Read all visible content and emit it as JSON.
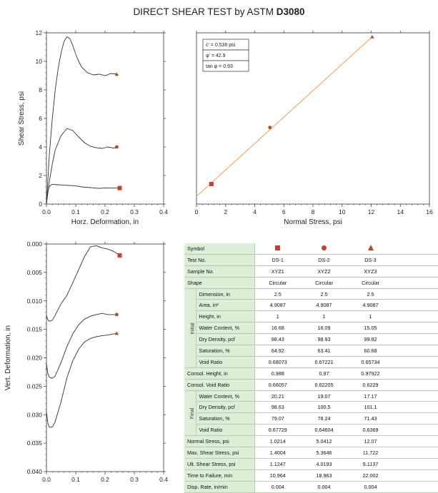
{
  "page": {
    "title_prefix": "DIRECT SHEAR TEST by ASTM",
    "title_bold": "D3080",
    "accent_color": "#c2412a",
    "envelope_color": "#f0b070",
    "table_label_bg": "#dcefd6"
  },
  "chart_data": [
    {
      "id": "shear-vs-horz",
      "type": "line",
      "xlabel": "Horz. Deformation, in",
      "ylabel": "Shear Stress, psi",
      "xlim": [
        0,
        0.4
      ],
      "ylim": [
        0,
        12
      ],
      "xticks": [
        "0.0",
        "0.1",
        "0.2",
        "0.3",
        "0.4"
      ],
      "yticks": [
        "0",
        "2",
        "4",
        "6",
        "8",
        "10",
        "12"
      ],
      "series": [
        {
          "symbol": "square",
          "x": [
            0,
            0.005,
            0.01,
            0.02,
            0.04,
            0.06,
            0.08,
            0.1,
            0.12,
            0.15,
            0.18,
            0.2,
            0.22,
            0.24,
            0.25
          ],
          "y": [
            0,
            0.9,
            1.25,
            1.38,
            1.35,
            1.33,
            1.3,
            1.28,
            1.2,
            1.15,
            1.1,
            1.13,
            1.12,
            1.12,
            1.12
          ]
        },
        {
          "symbol": "circle",
          "x": [
            0,
            0.01,
            0.02,
            0.03,
            0.05,
            0.07,
            0.09,
            0.11,
            0.13,
            0.15,
            0.17,
            0.19,
            0.21,
            0.23,
            0.24
          ],
          "y": [
            0,
            1.6,
            2.8,
            3.8,
            4.8,
            5.3,
            5.15,
            4.7,
            4.3,
            4.05,
            3.95,
            3.9,
            4.0,
            3.92,
            4.0
          ]
        },
        {
          "symbol": "triangle",
          "x": [
            0,
            0.01,
            0.02,
            0.03,
            0.04,
            0.05,
            0.06,
            0.07,
            0.08,
            0.09,
            0.1,
            0.11,
            0.12,
            0.14,
            0.16,
            0.18,
            0.2,
            0.22,
            0.24
          ],
          "y": [
            0,
            3.5,
            6.0,
            8.0,
            9.5,
            10.6,
            11.4,
            11.72,
            11.6,
            11.1,
            10.5,
            10.0,
            9.6,
            9.2,
            9.05,
            9.1,
            9.0,
            9.15,
            9.1
          ]
        }
      ]
    },
    {
      "id": "failure-envelope",
      "type": "scatter",
      "xlabel": "Normal Stress, psi",
      "ylabel": "",
      "xlim": [
        0,
        16
      ],
      "ylim": [
        0,
        12
      ],
      "xticks": [
        "0",
        "2",
        "4",
        "6",
        "8",
        "10",
        "12",
        "14",
        "16"
      ],
      "points": [
        {
          "symbol": "square",
          "x": 1.0214,
          "y": 1.4004
        },
        {
          "symbol": "circle",
          "x": 5.0412,
          "y": 5.3646
        },
        {
          "symbol": "triangle",
          "x": 12.07,
          "y": 11.722
        }
      ],
      "fit_line": {
        "x": [
          0,
          12.07
        ],
        "y": [
          0.536,
          11.72
        ]
      },
      "annotation": [
        "c' = 0.536 psi",
        "φ' = 42.9",
        "tan φ = 0.93"
      ]
    },
    {
      "id": "vert-vs-horz",
      "type": "line",
      "xlabel": "",
      "ylabel": "Vert. Deformation, in",
      "xlim": [
        0,
        0.4
      ],
      "ylim": [
        0.04,
        0.0
      ],
      "xticks": [
        "0.0",
        "0.1",
        "0.2",
        "0.3",
        "0.4"
      ],
      "yticks": [
        "0.000",
        "0.005",
        "0.010",
        "0.015",
        "0.020",
        "0.025",
        "0.030",
        "0.035",
        "0.040"
      ],
      "series": [
        {
          "symbol": "square",
          "x": [
            0,
            0.005,
            0.01,
            0.02,
            0.03,
            0.05,
            0.07,
            0.09,
            0.11,
            0.13,
            0.15,
            0.17,
            0.19,
            0.21,
            0.23,
            0.25
          ],
          "y": [
            0.0125,
            0.0133,
            0.0136,
            0.0134,
            0.0125,
            0.0105,
            0.009,
            0.0068,
            0.0045,
            0.0022,
            0.0005,
            0.0003,
            0.0007,
            0.0009,
            0.0013,
            0.002
          ]
        },
        {
          "symbol": "circle",
          "x": [
            0,
            0.005,
            0.01,
            0.02,
            0.03,
            0.05,
            0.07,
            0.09,
            0.11,
            0.13,
            0.15,
            0.17,
            0.19,
            0.21,
            0.24
          ],
          "y": [
            0.021,
            0.0228,
            0.0234,
            0.0236,
            0.0232,
            0.0208,
            0.018,
            0.0158,
            0.0142,
            0.0132,
            0.0127,
            0.0124,
            0.0122,
            0.0124,
            0.0124
          ]
        },
        {
          "symbol": "triangle",
          "x": [
            0,
            0.005,
            0.01,
            0.02,
            0.03,
            0.05,
            0.07,
            0.09,
            0.11,
            0.13,
            0.15,
            0.17,
            0.19,
            0.21,
            0.24
          ],
          "y": [
            0.0295,
            0.0315,
            0.0322,
            0.0322,
            0.0312,
            0.0277,
            0.0235,
            0.0205,
            0.0185,
            0.0172,
            0.0166,
            0.0163,
            0.0161,
            0.016,
            0.0157
          ]
        }
      ]
    }
  ],
  "table": {
    "header": {
      "label": "Symbol",
      "symbols": [
        "square",
        "circle",
        "triangle"
      ]
    },
    "rows": [
      {
        "label": "Test No.",
        "values": [
          "DS-1",
          "DS-2",
          "DS-3"
        ]
      },
      {
        "label": "Sample No.",
        "values": [
          "XYZ1",
          "XYZ2",
          "XYZ3"
        ]
      },
      {
        "label": "Shape",
        "values": [
          "Circular",
          "Circular",
          "Circular"
        ]
      }
    ],
    "initial": {
      "group_label": "Initial",
      "rows": [
        {
          "label": "Dimension, in",
          "values": [
            "2.5",
            "2.5",
            "2.5"
          ]
        },
        {
          "label": "Area, in²",
          "values": [
            "4.9087",
            "4.9087",
            "4.9087"
          ]
        },
        {
          "label": "Height, in",
          "values": [
            "1",
            "1",
            "1"
          ]
        },
        {
          "label": "Water Content, %",
          "values": [
            "16.68",
            "16.09",
            "15.05"
          ]
        },
        {
          "label": "Dry Density, pcf",
          "values": [
            "98.43",
            "98.93",
            "99.82"
          ]
        },
        {
          "label": "Saturation, %",
          "values": [
            "64.92",
            "63.41",
            "60.68"
          ]
        },
        {
          "label": "Void Ratio",
          "values": [
            "0.68073",
            "0.67221",
            "0.65734"
          ]
        }
      ]
    },
    "consol": [
      {
        "label": "Consol. Height, in",
        "values": [
          "0.988",
          "0.97",
          "0.97922"
        ]
      },
      {
        "label": "Consol. Void Ratio",
        "values": [
          "0.66057",
          "0.62205",
          "0.6229"
        ]
      }
    ],
    "final": {
      "group_label": "Final",
      "rows": [
        {
          "label": "Water Content, %",
          "values": [
            "20.21",
            "19.07",
            "17.17"
          ]
        },
        {
          "label": "Dry Density, pcf",
          "values": [
            "98.63",
            "100.5",
            "101.1"
          ]
        },
        {
          "label": "Saturation, %",
          "values": [
            "79.07",
            "78.24",
            "71.43"
          ]
        },
        {
          "label": "Void Ratio",
          "values": [
            "0.67729",
            "0.64604",
            "0.6369"
          ]
        }
      ]
    },
    "results": [
      {
        "label": "Normal Stress, psi",
        "values": [
          "1.0214",
          "5.0412",
          "12.07"
        ]
      },
      {
        "label": "Max. Shear Stress, psi",
        "values": [
          "1.4004",
          "5.3646",
          "11.722"
        ]
      },
      {
        "label": "Ult. Shear Stress, psi",
        "values": [
          "1.1247",
          "4.0193",
          "9.1137"
        ]
      },
      {
        "label": "Time to Failure, min",
        "values": [
          "10.964",
          "18.963",
          "22.002"
        ]
      },
      {
        "label": "Disp. Rate, in/min",
        "values": [
          "0.004",
          "0.004",
          "0.004"
        ]
      }
    ]
  }
}
